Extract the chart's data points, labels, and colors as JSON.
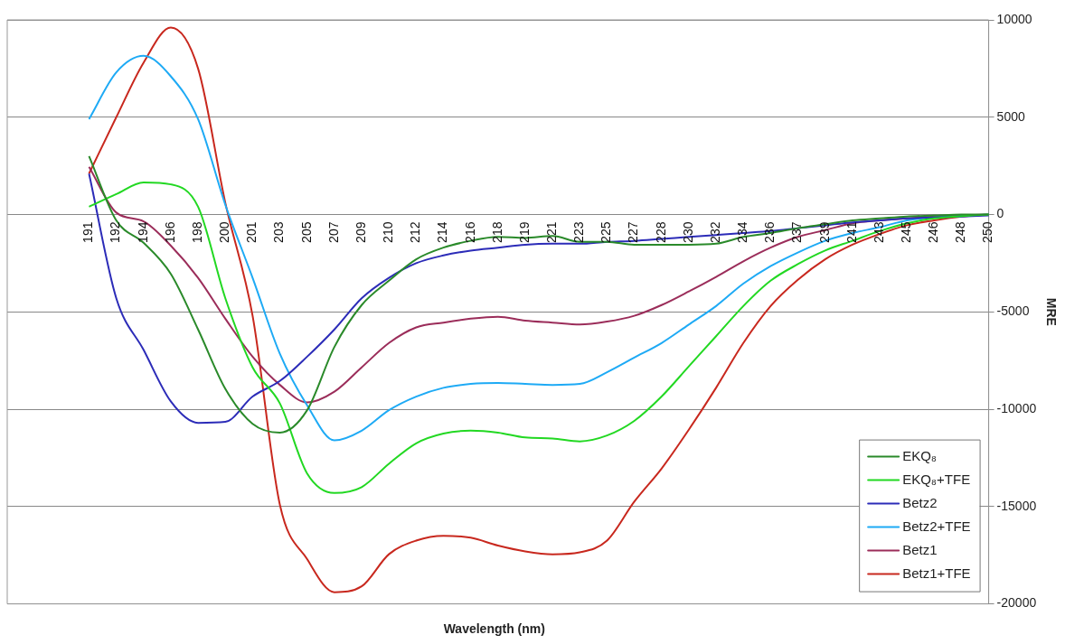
{
  "chart_data": {
    "type": "line",
    "xlabel": "Wavelength (nm)",
    "ylabel": "MRE",
    "categories": [
      null,
      null,
      null,
      "191",
      "192",
      "194",
      "196",
      "198",
      "200",
      "201",
      "203",
      "205",
      "207",
      "209",
      "210",
      "212",
      "214",
      "216",
      "218",
      "219",
      "221",
      "223",
      "225",
      "227",
      "228",
      "230",
      "232",
      "234",
      "236",
      "237",
      "239",
      "241",
      "243",
      "245",
      "246",
      "248",
      "250"
    ],
    "series": [
      {
        "name": "EKQ₈",
        "color": "#2a8a2a",
        "values": [
          null,
          null,
          null,
          3000,
          -300,
          -1450,
          -3050,
          -5900,
          -8950,
          -10750,
          -11200,
          -10050,
          -6800,
          -4650,
          -3400,
          -2300,
          -1700,
          -1350,
          -1150,
          -1200,
          -1100,
          -1400,
          -1400,
          -1550,
          -1550,
          -1550,
          -1500,
          -1150,
          -950,
          -700,
          -500,
          -300,
          -200,
          -100,
          -50,
          0,
          0
        ]
      },
      {
        "name": "EKQ₈+TFE",
        "color": "#22d822",
        "values": [
          null,
          null,
          null,
          400,
          1050,
          1650,
          1550,
          400,
          -4300,
          -7850,
          -9700,
          -13300,
          -14300,
          -14000,
          -12800,
          -11750,
          -11250,
          -11100,
          -11200,
          -11450,
          -11500,
          -11650,
          -11350,
          -10600,
          -9350,
          -7800,
          -6250,
          -4700,
          -3400,
          -2550,
          -1850,
          -1350,
          -850,
          -450,
          -200,
          -80,
          0
        ]
      },
      {
        "name": "Betz2",
        "color": "#2c2cb8",
        "values": [
          null,
          null,
          null,
          2100,
          -4300,
          -6950,
          -9600,
          -10700,
          -10650,
          -9350,
          -8550,
          -7300,
          -5900,
          -4300,
          -3250,
          -2500,
          -2100,
          -1850,
          -1700,
          -1550,
          -1500,
          -1500,
          -1400,
          -1350,
          -1250,
          -1150,
          -1050,
          -950,
          -850,
          -700,
          -550,
          -400,
          -300,
          -200,
          -150,
          -100,
          -50
        ]
      },
      {
        "name": "Betz2+TFE",
        "color": "#1eaaf5",
        "values": [
          null,
          null,
          null,
          4900,
          7300,
          8150,
          7100,
          4900,
          500,
          -3250,
          -7150,
          -9800,
          -11600,
          -11100,
          -10050,
          -9350,
          -8900,
          -8700,
          -8650,
          -8700,
          -8750,
          -8700,
          -8100,
          -7350,
          -6600,
          -5650,
          -4700,
          -3550,
          -2650,
          -1950,
          -1350,
          -950,
          -650,
          -300,
          -150,
          -80,
          0
        ]
      },
      {
        "name": "Betz1",
        "color": "#9b2d5a",
        "values": [
          null,
          null,
          null,
          2450,
          100,
          -350,
          -1600,
          -3250,
          -5350,
          -7300,
          -8750,
          -9650,
          -9100,
          -7850,
          -6600,
          -5800,
          -5550,
          -5350,
          -5250,
          -5450,
          -5550,
          -5650,
          -5500,
          -5200,
          -4650,
          -3950,
          -3200,
          -2400,
          -1700,
          -1150,
          -800,
          -450,
          -300,
          -200,
          -100,
          -50,
          0
        ]
      },
      {
        "name": "Betz1+TFE",
        "color": "#c8281e",
        "values": [
          null,
          null,
          null,
          2100,
          5000,
          7800,
          9600,
          7500,
          600,
          -5200,
          -14900,
          -17700,
          -19400,
          -19100,
          -17450,
          -16750,
          -16500,
          -16600,
          -17000,
          -17300,
          -17450,
          -17350,
          -16750,
          -14750,
          -13050,
          -11050,
          -8900,
          -6600,
          -4700,
          -3350,
          -2300,
          -1550,
          -1000,
          -550,
          -300,
          -100,
          0
        ]
      }
    ],
    "ylim": [
      -20000,
      10000
    ],
    "yticks": [
      -20000,
      -15000,
      -10000,
      -5000,
      0,
      5000,
      10000
    ],
    "grid": "y",
    "legend": "bottom right",
    "marker": "none",
    "line_style": "solid"
  }
}
